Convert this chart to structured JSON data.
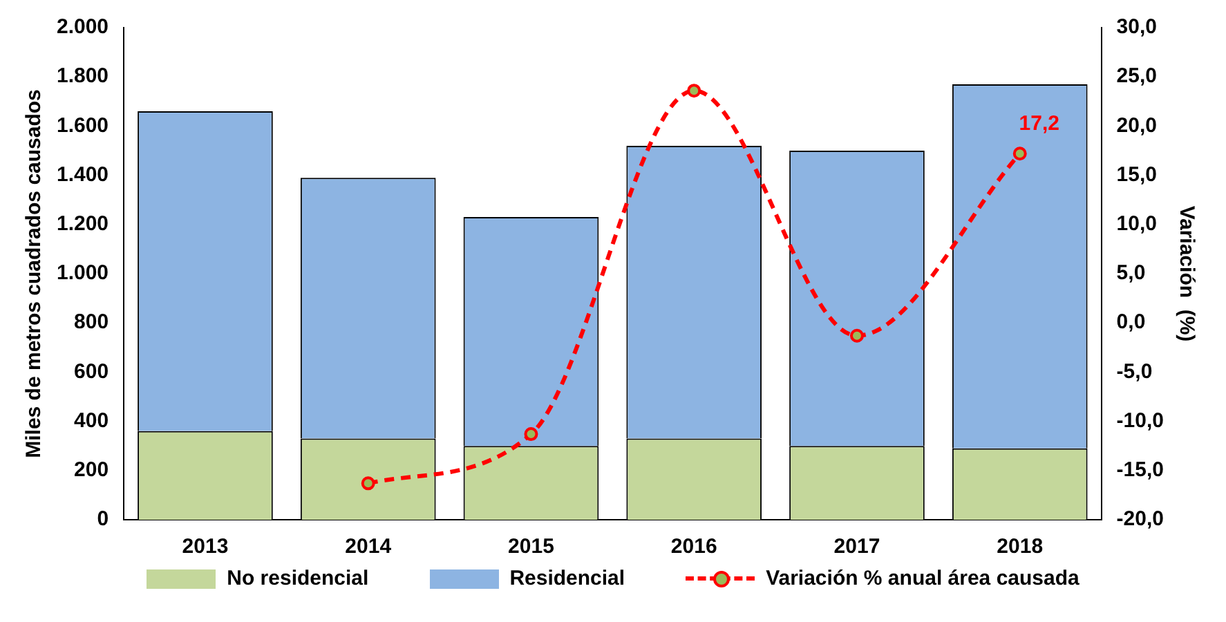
{
  "chart_data": {
    "type": "bar",
    "stacked": true,
    "categories": [
      "2013",
      "2014",
      "2015",
      "2016",
      "2017",
      "2018"
    ],
    "series": [
      {
        "name": "No residencial",
        "color": "#c4d79b",
        "values": [
          360,
          330,
          300,
          330,
          300,
          290
        ]
      },
      {
        "name": "Residencial",
        "color": "#8db4e2",
        "values": [
          1300,
          1060,
          930,
          1190,
          1200,
          1480
        ]
      },
      {
        "name": "Variación % anual área causada",
        "type": "line",
        "axis": "y2",
        "color": "#ff0000",
        "values": [
          null,
          -16.3,
          -11.3,
          23.6,
          -1.3,
          17.2
        ],
        "value_labels": [
          null,
          null,
          null,
          null,
          null,
          "17,2"
        ]
      }
    ],
    "ylabel": "Miles de metros cuadrados causados",
    "y2label": "Variación  (%)",
    "ylim": [
      0,
      2000
    ],
    "yticks": [
      0,
      200,
      400,
      600,
      800,
      {
        "value": 1000,
        "label": "1.000"
      },
      {
        "value": 1200,
        "label": "1.200"
      },
      {
        "value": 1400,
        "label": "1.400"
      },
      {
        "value": 1600,
        "label": "1.600"
      },
      {
        "value": 1800,
        "label": "1.800"
      },
      {
        "value": 2000,
        "label": "2.000"
      }
    ],
    "y2lim": [
      -20,
      30
    ],
    "y2ticks": [
      {
        "value": -20,
        "label": "-20,0"
      },
      {
        "value": -15,
        "label": "-15,0"
      },
      {
        "value": -10,
        "label": "-10,0"
      },
      {
        "value": -5,
        "label": "-5,0"
      },
      {
        "value": 0,
        "label": "0,0"
      },
      {
        "value": 5,
        "label": "5,0"
      },
      {
        "value": 10,
        "label": "10,0"
      },
      {
        "value": 15,
        "label": "15,0"
      },
      {
        "value": 20,
        "label": "20,0"
      },
      {
        "value": 25,
        "label": "25,0"
      },
      {
        "value": 30,
        "label": "30,0"
      }
    ],
    "grid": false,
    "legend": "bottom",
    "marker": "circle",
    "line_style": "dashed"
  }
}
